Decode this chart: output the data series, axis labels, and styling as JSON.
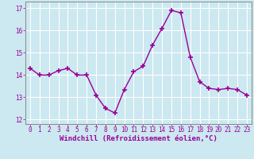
{
  "x": [
    0,
    1,
    2,
    3,
    4,
    5,
    6,
    7,
    8,
    9,
    10,
    11,
    12,
    13,
    14,
    15,
    16,
    17,
    18,
    19,
    20,
    21,
    22,
    23
  ],
  "y": [
    14.3,
    14.0,
    14.0,
    14.2,
    14.3,
    14.0,
    14.0,
    13.1,
    12.5,
    12.3,
    13.35,
    14.15,
    14.4,
    15.35,
    16.1,
    16.9,
    16.8,
    14.8,
    13.7,
    13.4,
    13.35,
    13.4,
    13.35,
    13.1
  ],
  "line_color": "#990099",
  "marker": "+",
  "marker_size": 4,
  "marker_lw": 1.2,
  "bg_color": "#cce8f0",
  "grid_color": "#ffffff",
  "xlabel": "Windchill (Refroidissement éolien,°C)",
  "xlabel_color": "#990099",
  "tick_color": "#990099",
  "axis_color": "#888888",
  "ylim": [
    11.8,
    17.3
  ],
  "xlim": [
    -0.5,
    23.5
  ],
  "yticks": [
    12,
    13,
    14,
    15,
    16,
    17
  ],
  "xticks": [
    0,
    1,
    2,
    3,
    4,
    5,
    6,
    7,
    8,
    9,
    10,
    11,
    12,
    13,
    14,
    15,
    16,
    17,
    18,
    19,
    20,
    21,
    22,
    23
  ],
  "font": "monospace",
  "tick_fontsize": 5.5,
  "xlabel_fontsize": 6.5,
  "linewidth": 1.0
}
